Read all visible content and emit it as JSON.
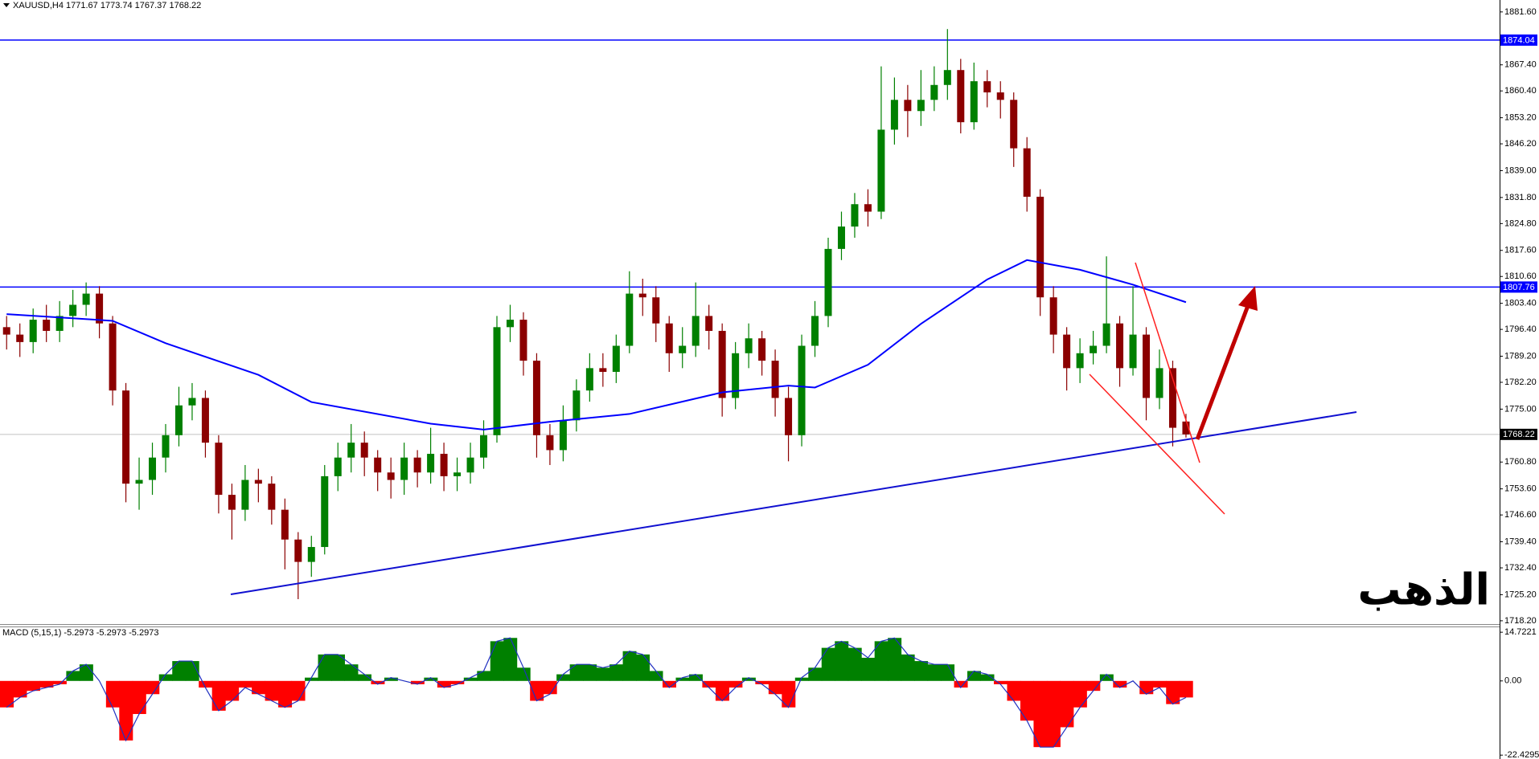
{
  "chart_data": [
    {
      "type": "candlestick",
      "title": "XAUUSD,H4  1771.67 1773.74 1767.37 1768.22",
      "annotation": "الذهب",
      "annotation_color": "#e00000",
      "up_color": "#008000",
      "down_color": "#8b0000",
      "open": [
        1797,
        1795,
        1793,
        1799,
        1796,
        1800,
        1803,
        1806,
        1798,
        1780,
        1755,
        1756,
        1762,
        1768,
        1776,
        1778,
        1766,
        1752,
        1748,
        1756,
        1755,
        1748,
        1740,
        1734,
        1738,
        1757,
        1762,
        1766,
        1762,
        1758,
        1756,
        1762,
        1758,
        1763,
        1757,
        1758,
        1762,
        1768,
        1797,
        1799,
        1788,
        1768,
        1764,
        1772,
        1780,
        1786,
        1785,
        1792,
        1806,
        1805,
        1798,
        1790,
        1792,
        1800,
        1796,
        1778,
        1790,
        1794,
        1788,
        1778,
        1768,
        1792,
        1800,
        1818,
        1824,
        1830,
        1828,
        1850,
        1858,
        1855,
        1858,
        1862,
        1866,
        1852,
        1863,
        1860,
        1858,
        1845,
        1832,
        1805,
        1795,
        1786,
        1790,
        1792,
        1798,
        1786,
        1795,
        1778,
        1786,
        1771.67
      ],
      "high": [
        1800,
        1798,
        1802,
        1803,
        1804,
        1807,
        1809,
        1808,
        1800,
        1782,
        1762,
        1766,
        1771,
        1781,
        1782,
        1780,
        1768,
        1755,
        1760,
        1759,
        1757,
        1751,
        1742,
        1741,
        1760,
        1766,
        1771,
        1769,
        1764,
        1762,
        1766,
        1764,
        1770,
        1766,
        1762,
        1766,
        1772,
        1800,
        1803,
        1801,
        1790,
        1771,
        1776,
        1783,
        1790,
        1790,
        1795,
        1812,
        1810,
        1808,
        1800,
        1797,
        1809,
        1803,
        1798,
        1793,
        1798,
        1796,
        1791,
        1781,
        1795,
        1804,
        1821,
        1828,
        1833,
        1834,
        1867,
        1864,
        1862,
        1866,
        1867,
        1877,
        1869,
        1868,
        1866,
        1863,
        1860,
        1848,
        1834,
        1808,
        1797,
        1794,
        1796,
        1816,
        1800,
        1808,
        1797,
        1791,
        1788,
        1773.74
      ],
      "low": [
        1791,
        1789,
        1790,
        1793,
        1793,
        1797,
        1800,
        1794,
        1776,
        1750,
        1748,
        1752,
        1758,
        1765,
        1772,
        1762,
        1747,
        1740,
        1745,
        1750,
        1744,
        1732,
        1724,
        1730,
        1736,
        1753,
        1758,
        1757,
        1753,
        1751,
        1752,
        1754,
        1755,
        1753,
        1753,
        1755,
        1759,
        1766,
        1793,
        1784,
        1762,
        1760,
        1761,
        1769,
        1777,
        1781,
        1782,
        1790,
        1800,
        1793,
        1785,
        1786,
        1789,
        1791,
        1773,
        1775,
        1786,
        1784,
        1773,
        1761,
        1765,
        1789,
        1797,
        1815,
        1821,
        1824,
        1826,
        1846,
        1848,
        1851,
        1855,
        1858,
        1849,
        1850,
        1856,
        1853,
        1840,
        1828,
        1800,
        1790,
        1780,
        1782,
        1787,
        1790,
        1781,
        1784,
        1772,
        1775,
        1765,
        1767.37
      ],
      "close": [
        1795,
        1793,
        1799,
        1796,
        1800,
        1803,
        1806,
        1798,
        1780,
        1755,
        1756,
        1762,
        1768,
        1776,
        1778,
        1766,
        1752,
        1748,
        1756,
        1755,
        1748,
        1740,
        1734,
        1738,
        1757,
        1762,
        1766,
        1762,
        1758,
        1756,
        1762,
        1758,
        1763,
        1757,
        1758,
        1762,
        1768,
        1797,
        1799,
        1788,
        1768,
        1764,
        1772,
        1780,
        1786,
        1785,
        1792,
        1806,
        1805,
        1798,
        1790,
        1792,
        1800,
        1796,
        1778,
        1790,
        1794,
        1788,
        1778,
        1768,
        1792,
        1800,
        1818,
        1824,
        1830,
        1828,
        1850,
        1858,
        1855,
        1858,
        1862,
        1866,
        1852,
        1863,
        1860,
        1858,
        1845,
        1832,
        1805,
        1795,
        1786,
        1790,
        1792,
        1798,
        1786,
        1795,
        1778,
        1786,
        1770,
        1768.22
      ],
      "ma": {
        "color": "#0000ff",
        "x": [
          0,
          8,
          12,
          19,
          23,
          32,
          36,
          41,
          47,
          54,
          59,
          61,
          65,
          69,
          74,
          77,
          81,
          85,
          89
        ],
        "values": [
          1800.5,
          1798.7,
          1792.7,
          1784.2,
          1776.9,
          1771.1,
          1769.5,
          1771.6,
          1773.7,
          1779.5,
          1781.3,
          1780.8,
          1786.9,
          1797.9,
          1809.8,
          1815,
          1812.4,
          1808.4,
          1803.7
        ]
      },
      "levels": [
        {
          "value": 1874.04,
          "color": "#0000ff",
          "label_color": "#0000ff"
        },
        {
          "value": 1807.76,
          "color": "#0000ff",
          "label_color": "#0000ff"
        },
        {
          "value": 1768.22,
          "color": "#c0c0c0",
          "label_color": "#000000"
        }
      ],
      "ylim": [
        1717.1,
        1884.8
      ],
      "yticks": [
        {
          "value": 1881.6,
          "label": "1881.60"
        },
        {
          "value": 1867.4,
          "label": "1867.40"
        },
        {
          "value": 1860.4,
          "label": "1860.40"
        },
        {
          "value": 1853.2,
          "label": "1853.20"
        },
        {
          "value": 1846.2,
          "label": "1846.20"
        },
        {
          "value": 1839,
          "label": "1839.00"
        },
        {
          "value": 1831.8,
          "label": "1831.80"
        },
        {
          "value": 1824.8,
          "label": "1824.80"
        },
        {
          "value": 1817.6,
          "label": "1817.60"
        },
        {
          "value": 1810.6,
          "label": "1810.60"
        },
        {
          "value": 1803.4,
          "label": "1803.40"
        },
        {
          "value": 1796.4,
          "label": "1796.40"
        },
        {
          "value": 1789.2,
          "label": "1789.20"
        },
        {
          "value": 1782.2,
          "label": "1782.20"
        },
        {
          "value": 1775,
          "label": "1775.00"
        },
        {
          "value": 1760.8,
          "label": "1760.80"
        },
        {
          "value": 1753.6,
          "label": "1753.60"
        },
        {
          "value": 1746.6,
          "label": "1746.60"
        },
        {
          "value": 1739.4,
          "label": "1739.40"
        },
        {
          "value": 1732.4,
          "label": "1732.40"
        },
        {
          "value": 1725.2,
          "label": "1725.20"
        },
        {
          "value": 1718.2,
          "label": "1718.20"
        }
      ]
    },
    {
      "type": "area",
      "title": "MACD (5,15,1) -5.2973 -5.2973 -5.2973",
      "positive_color": "#008000",
      "negative_color": "#ff0000",
      "line_color": "#2030c0",
      "values": [
        -8,
        -5,
        -3,
        -2,
        -1,
        3,
        5,
        0,
        -8,
        -18,
        -10,
        -4,
        2,
        6,
        6,
        -2,
        -9,
        -6,
        -2,
        -4,
        -6,
        -8,
        -6,
        1,
        8,
        8,
        5,
        2,
        -1,
        1,
        0,
        -1,
        1,
        -2,
        -1,
        1,
        3,
        12,
        13,
        4,
        -6,
        -4,
        2,
        5,
        5,
        4,
        5,
        9,
        8,
        3,
        -2,
        1,
        2,
        -2,
        -6,
        -2,
        1,
        -1,
        -4,
        -8,
        1,
        4,
        10,
        12,
        10,
        7,
        12,
        13,
        8,
        6,
        5,
        5,
        -2,
        3,
        2,
        -1,
        -6,
        -12,
        -20,
        -20,
        -14,
        -8,
        -3,
        2,
        -2,
        0,
        -4,
        -2,
        -7,
        -5
      ],
      "ylim": [
        -23.6,
        16.7
      ],
      "yticks": [
        14.7221,
        {
          "value": 0,
          "label": "0.00"
        },
        -22.4295
      ]
    }
  ]
}
